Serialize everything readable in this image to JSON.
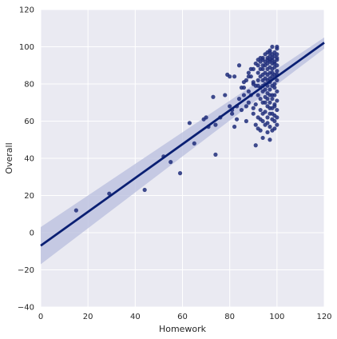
{
  "chart_data": {
    "type": "scatter",
    "title": "",
    "xlabel": "Homework",
    "ylabel": "Overall",
    "xlim": [
      0,
      120
    ],
    "ylim": [
      -40,
      120
    ],
    "x_ticks": [
      0,
      20,
      40,
      60,
      80,
      100,
      120
    ],
    "y_ticks": [
      -40,
      -20,
      0,
      20,
      40,
      60,
      80,
      100,
      120
    ],
    "grid": true,
    "legend": "none",
    "background_color": "#EAEAF2",
    "grid_color": "#FFFFFF",
    "point_color": "#1F2D7A",
    "line_color": "#0A1F73",
    "band_color": "#B8BDDD",
    "regression": {
      "slope": 0.91,
      "intercept": -7.0,
      "x_range": [
        0,
        120
      ],
      "ci_at_x0": [
        -17,
        3
      ],
      "ci_at_x120": [
        99,
        105
      ]
    },
    "points": [
      [
        15,
        12
      ],
      [
        29,
        21
      ],
      [
        44,
        23
      ],
      [
        55,
        38
      ],
      [
        59,
        32
      ],
      [
        65,
        48
      ],
      [
        74,
        42
      ],
      [
        52,
        41
      ],
      [
        63,
        59
      ],
      [
        69,
        61
      ],
      [
        70,
        62
      ],
      [
        71,
        57
      ],
      [
        73,
        73
      ],
      [
        74,
        58
      ],
      [
        76,
        62
      ],
      [
        78,
        74
      ],
      [
        79,
        85
      ],
      [
        80,
        84
      ],
      [
        80,
        68
      ],
      [
        81,
        64
      ],
      [
        81,
        66
      ],
      [
        82,
        84
      ],
      [
        82,
        57
      ],
      [
        83,
        61
      ],
      [
        83,
        68
      ],
      [
        84,
        90
      ],
      [
        84,
        72
      ],
      [
        85,
        66
      ],
      [
        86,
        78
      ],
      [
        86,
        74
      ],
      [
        87,
        60
      ],
      [
        87,
        68
      ],
      [
        88,
        76
      ],
      [
        88,
        86
      ],
      [
        88,
        70
      ],
      [
        89,
        74
      ],
      [
        89,
        84
      ],
      [
        90,
        67
      ],
      [
        90,
        80
      ],
      [
        90,
        81
      ],
      [
        90,
        64
      ],
      [
        91,
        47
      ],
      [
        91,
        58
      ],
      [
        91,
        69
      ],
      [
        91,
        79
      ],
      [
        92,
        82
      ],
      [
        92,
        86
      ],
      [
        92,
        90
      ],
      [
        92,
        74
      ],
      [
        92,
        62
      ],
      [
        93,
        55
      ],
      [
        93,
        72
      ],
      [
        93,
        78
      ],
      [
        93,
        84
      ],
      [
        93,
        92
      ],
      [
        93,
        66
      ],
      [
        94,
        51
      ],
      [
        94,
        60
      ],
      [
        94,
        70
      ],
      [
        94,
        76
      ],
      [
        94,
        88
      ],
      [
        94,
        93
      ],
      [
        94,
        82
      ],
      [
        94,
        94
      ],
      [
        95,
        58
      ],
      [
        95,
        65
      ],
      [
        95,
        73
      ],
      [
        95,
        80
      ],
      [
        95,
        86
      ],
      [
        95,
        90
      ],
      [
        95,
        96
      ],
      [
        96,
        54
      ],
      [
        96,
        62
      ],
      [
        96,
        68
      ],
      [
        96,
        75
      ],
      [
        96,
        82
      ],
      [
        96,
        88
      ],
      [
        96,
        91
      ],
      [
        96,
        94
      ],
      [
        96,
        97
      ],
      [
        97,
        50
      ],
      [
        97,
        57
      ],
      [
        97,
        64
      ],
      [
        97,
        70
      ],
      [
        97,
        77
      ],
      [
        97,
        83
      ],
      [
        97,
        86
      ],
      [
        97,
        89
      ],
      [
        97,
        92
      ],
      [
        97,
        95
      ],
      [
        97,
        98
      ],
      [
        98,
        55
      ],
      [
        98,
        61
      ],
      [
        98,
        67
      ],
      [
        98,
        72
      ],
      [
        98,
        79
      ],
      [
        98,
        84
      ],
      [
        98,
        88
      ],
      [
        98,
        91
      ],
      [
        98,
        93
      ],
      [
        98,
        96
      ],
      [
        99,
        56
      ],
      [
        99,
        63
      ],
      [
        99,
        69
      ],
      [
        99,
        74
      ],
      [
        99,
        80
      ],
      [
        99,
        85
      ],
      [
        99,
        89
      ],
      [
        99,
        92
      ],
      [
        99,
        95
      ],
      [
        99,
        97
      ],
      [
        100,
        58
      ],
      [
        100,
        66
      ],
      [
        100,
        76
      ],
      [
        100,
        82
      ],
      [
        100,
        87
      ],
      [
        100,
        90
      ],
      [
        100,
        93
      ],
      [
        100,
        96
      ],
      [
        100,
        99
      ],
      [
        100,
        100
      ],
      [
        98,
        100
      ],
      [
        97,
        93
      ],
      [
        96,
        79
      ],
      [
        95,
        77
      ],
      [
        94,
        85
      ],
      [
        93,
        88
      ],
      [
        92,
        79
      ],
      [
        99,
        78
      ],
      [
        100,
        71
      ],
      [
        97,
        74
      ],
      [
        98,
        64
      ],
      [
        96,
        59
      ],
      [
        95,
        70
      ],
      [
        99,
        60
      ],
      [
        100,
        85
      ],
      [
        97,
        81
      ],
      [
        98,
        86
      ],
      [
        96,
        85
      ],
      [
        94,
        64
      ],
      [
        93,
        61
      ],
      [
        92,
        56
      ],
      [
        100,
        62
      ],
      [
        99,
        68
      ],
      [
        98,
        74
      ],
      [
        97,
        67
      ],
      [
        96,
        72
      ],
      [
        95,
        83
      ],
      [
        94,
        79
      ],
      [
        100,
        94
      ],
      [
        99,
        91
      ],
      [
        98,
        94
      ],
      [
        97,
        97
      ],
      [
        96,
        93
      ],
      [
        95,
        92
      ],
      [
        94,
        90
      ],
      [
        93,
        94
      ],
      [
        92,
        93
      ],
      [
        91,
        91
      ],
      [
        90,
        88
      ],
      [
        89,
        88
      ],
      [
        88,
        84
      ],
      [
        87,
        82
      ],
      [
        86,
        81
      ],
      [
        85,
        78
      ]
    ]
  }
}
